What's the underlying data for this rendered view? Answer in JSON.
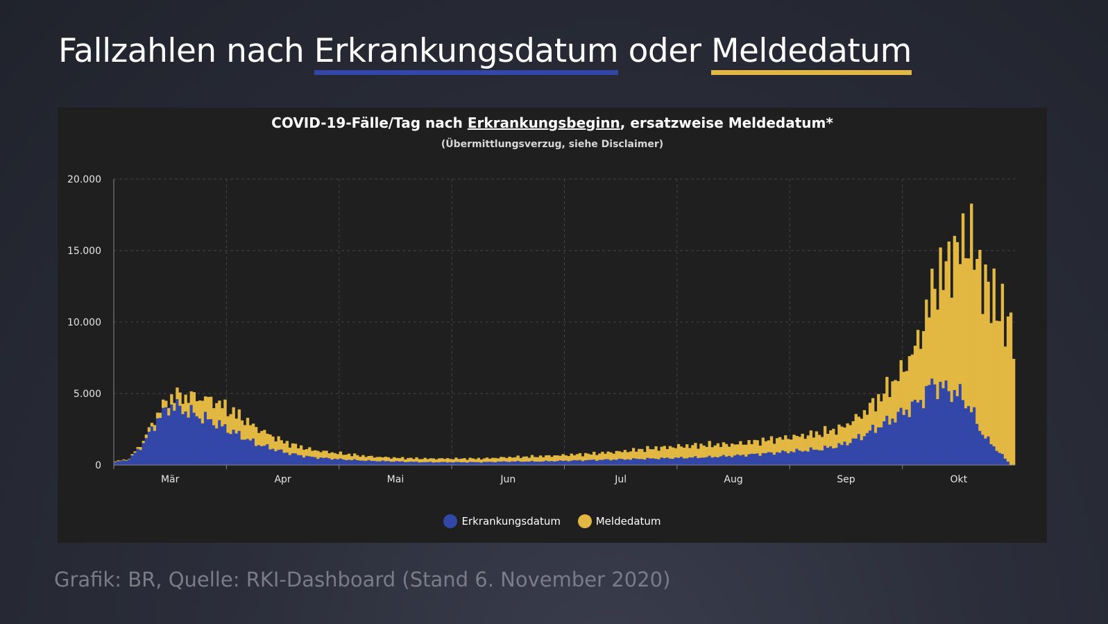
{
  "headline": {
    "part1": "Fallzahlen nach ",
    "part2": "Erkrankungsdatum",
    "part3": " oder ",
    "part4": "Meldedatum"
  },
  "source": "Grafik: BR, Quelle: RKI-Dashboard (Stand 6. November 2020)",
  "colors": {
    "blue": "#3347a8",
    "yellow": "#e2b842",
    "panel": "#1f1f1f"
  },
  "chart_data": {
    "type": "bar",
    "stacked": true,
    "title_part1": "COVID-19-Fälle/Tag nach ",
    "title_part2": "Erkrankungsbeginn",
    "title_part3": ", ersatzweise Meldedatum*",
    "subtitle": "(Übermittlungsverzug, siehe Disclaimer)",
    "ylim": [
      0,
      20000
    ],
    "yticks": [
      0,
      5000,
      10000,
      15000,
      20000
    ],
    "ytick_labels": [
      "0",
      "5.000",
      "10.000",
      "15.000",
      "20.000"
    ],
    "month_labels": [
      "Mär",
      "Apr",
      "Mai",
      "Jun",
      "Jul",
      "Aug",
      "Sep",
      "Okt"
    ],
    "legend_position": "bottom",
    "series": [
      {
        "name": "Erkrankungsdatum",
        "color": "#3347a8",
        "anchors": [
          [
            0,
            200
          ],
          [
            5,
            400
          ],
          [
            10,
            1500
          ],
          [
            15,
            3200
          ],
          [
            20,
            4200
          ],
          [
            25,
            3800
          ],
          [
            30,
            3400
          ],
          [
            35,
            3000
          ],
          [
            40,
            2500
          ],
          [
            45,
            2000
          ],
          [
            50,
            1500
          ],
          [
            55,
            1200
          ],
          [
            60,
            900
          ],
          [
            65,
            700
          ],
          [
            70,
            550
          ],
          [
            80,
            400
          ],
          [
            90,
            300
          ],
          [
            100,
            250
          ],
          [
            110,
            200
          ],
          [
            120,
            200
          ],
          [
            130,
            200
          ],
          [
            140,
            250
          ],
          [
            150,
            250
          ],
          [
            160,
            300
          ],
          [
            170,
            350
          ],
          [
            180,
            400
          ],
          [
            190,
            450
          ],
          [
            200,
            500
          ],
          [
            210,
            550
          ],
          [
            220,
            650
          ],
          [
            230,
            800
          ],
          [
            240,
            950
          ],
          [
            250,
            1100
          ],
          [
            258,
            1400
          ],
          [
            265,
            2000
          ],
          [
            272,
            2800
          ],
          [
            280,
            3700
          ],
          [
            286,
            4500
          ],
          [
            290,
            5700
          ],
          [
            295,
            5300
          ],
          [
            300,
            4900
          ],
          [
            304,
            3900
          ],
          [
            307,
            2500
          ],
          [
            310,
            1700
          ],
          [
            314,
            900
          ],
          [
            318,
            0
          ]
        ]
      },
      {
        "name": "Meldedatum",
        "color": "#e2b842",
        "anchors": [
          [
            0,
            50
          ],
          [
            5,
            50
          ],
          [
            10,
            200
          ],
          [
            15,
            400
          ],
          [
            20,
            600
          ],
          [
            25,
            1000
          ],
          [
            30,
            1300
          ],
          [
            35,
            1500
          ],
          [
            40,
            1400
          ],
          [
            45,
            1300
          ],
          [
            50,
            1100
          ],
          [
            55,
            900
          ],
          [
            60,
            700
          ],
          [
            65,
            600
          ],
          [
            70,
            500
          ],
          [
            80,
            400
          ],
          [
            90,
            300
          ],
          [
            100,
            250
          ],
          [
            110,
            250
          ],
          [
            120,
            250
          ],
          [
            130,
            250
          ],
          [
            140,
            300
          ],
          [
            150,
            350
          ],
          [
            160,
            400
          ],
          [
            170,
            450
          ],
          [
            180,
            550
          ],
          [
            190,
            700
          ],
          [
            200,
            800
          ],
          [
            210,
            850
          ],
          [
            220,
            800
          ],
          [
            230,
            900
          ],
          [
            240,
            1000
          ],
          [
            250,
            1100
          ],
          [
            258,
            1200
          ],
          [
            265,
            1500
          ],
          [
            272,
            2000
          ],
          [
            280,
            3000
          ],
          [
            286,
            4500
          ],
          [
            290,
            6500
          ],
          [
            295,
            8500
          ],
          [
            300,
            10500
          ],
          [
            304,
            12000
          ],
          [
            307,
            11000
          ],
          [
            310,
            10500
          ],
          [
            314,
            10000
          ],
          [
            318,
            9500
          ]
        ]
      }
    ]
  },
  "legend": [
    {
      "label": "Erkrankungsdatum",
      "color": "#3347a8"
    },
    {
      "label": "Meldedatum",
      "color": "#e2b842"
    }
  ]
}
